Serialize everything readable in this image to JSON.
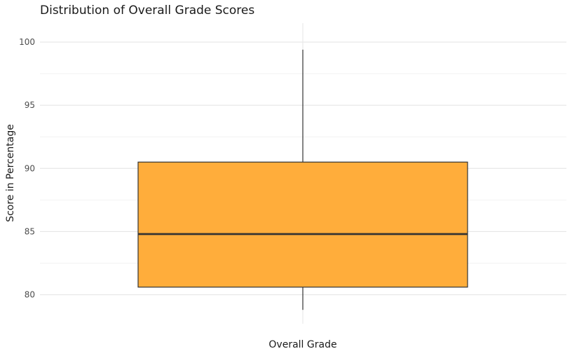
{
  "chart_data": {
    "type": "boxplot",
    "title": "Distribution of Overall Grade Scores",
    "xlabel": "Overall Grade",
    "ylabel": "Score in Percentage",
    "ylim": [
      77.7,
      101.5
    ],
    "yticks": [
      80,
      85,
      90,
      95,
      100
    ],
    "ytick_labels": [
      "80",
      "85",
      "90",
      "95",
      "100"
    ],
    "grid": true,
    "legend": "none",
    "box": {
      "category": "Overall Grade",
      "min": 78.8,
      "q1": 80.6,
      "median": 84.8,
      "q3": 90.5,
      "max": 99.4,
      "fill_color": "#FFAD3B",
      "line_color": "#333333"
    },
    "colors": {
      "grid_major": "#e6e6e6",
      "grid_minor": "#f2f2f2",
      "box_fill": "#FFAD3B",
      "box_line": "#333333"
    }
  }
}
